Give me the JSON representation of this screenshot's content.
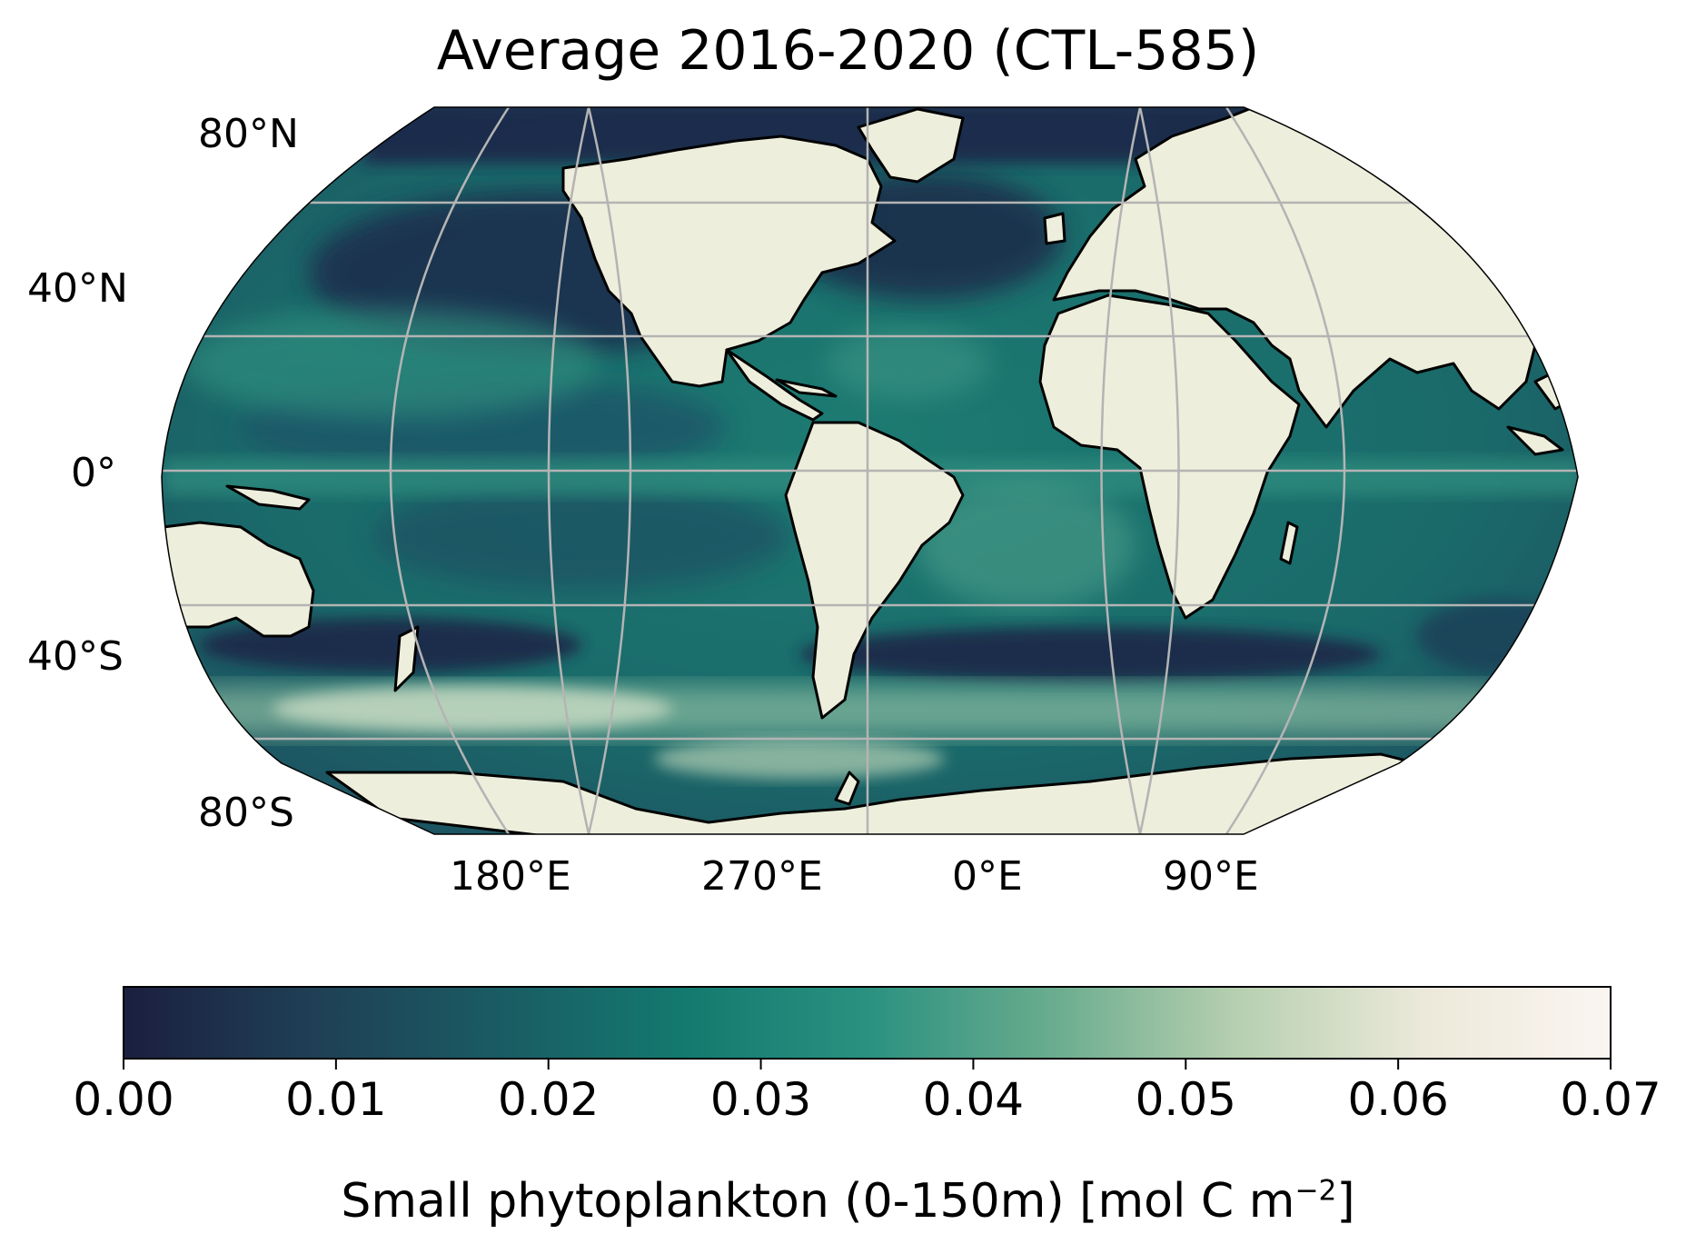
{
  "title": "Average 2016-2020 (CTL-585)",
  "map": {
    "projection": "Robinson",
    "colormap": "cmocean tempo_r (dark navy → teal → pale)",
    "land_color": "#eeeedd",
    "coastline_color": "#000000",
    "gridline_color": "#aaaaaa",
    "lat_labels": [
      "80°N",
      "40°N",
      "0°",
      "40°S",
      "80°S"
    ],
    "lon_labels": [
      "180°E",
      "270°E",
      "0°E",
      "90°E"
    ]
  },
  "colorbar": {
    "min": 0.0,
    "max": 0.07,
    "ticks": [
      "0.00",
      "0.01",
      "0.02",
      "0.03",
      "0.04",
      "0.05",
      "0.06",
      "0.07"
    ],
    "label_main": "Small phytoplankton (0-150m) [mol C m",
    "label_exp": "−2",
    "label_end": "]",
    "colors": [
      "#1b1f3f",
      "#1f3f55",
      "#1a5b63",
      "#13796f",
      "#2a9180",
      "#6aac8e",
      "#b7d0b1",
      "#ece9da",
      "#fbf5f1"
    ]
  }
}
